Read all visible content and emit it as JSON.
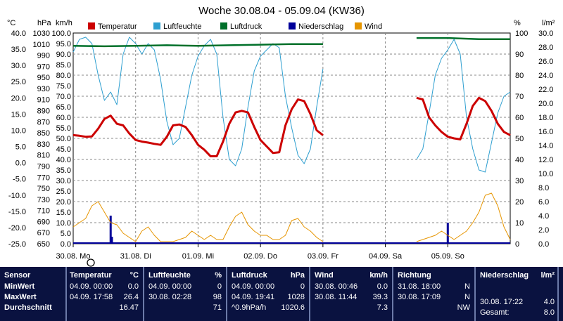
{
  "chart_data": {
    "type": "line",
    "title": "Woche 30.08.04 - 05.09.04 (KW36)",
    "x_ticks": [
      "30.08.  Mo",
      "31.08.  Di",
      "01.09.  Mi",
      "02.09.  Do",
      "03.09.  Fr",
      "04.09.  Sa",
      "05.09.  So"
    ],
    "axes": {
      "temp": {
        "unit": "°C",
        "ylim": [
          -25,
          40
        ],
        "ticks": [
          "40.0",
          "35.0",
          "30.0",
          "25.0",
          "20.0",
          "15.0",
          "10.0",
          "5.0",
          "0.0",
          "-5.0",
          "-10.0",
          "-15.0",
          "-20.0",
          "-25.0"
        ]
      },
      "pressure": {
        "unit": "hPa",
        "ylim": [
          650,
          1030
        ],
        "ticks": [
          "1030",
          "1010",
          "990",
          "970",
          "950",
          "930",
          "910",
          "890",
          "870",
          "850",
          "830",
          "810",
          "790",
          "770",
          "750",
          "730",
          "710",
          "690",
          "670",
          "650"
        ]
      },
      "wind": {
        "unit": "km/h",
        "ylim": [
          0,
          100
        ],
        "ticks": [
          "100.0",
          "95.0",
          "90.0",
          "85.0",
          "80.0",
          "75.0",
          "70.0",
          "65.0",
          "60.0",
          "55.0",
          "50.0",
          "45.0",
          "40.0",
          "35.0",
          "30.0",
          "25.0",
          "20.0",
          "15.0",
          "10.0",
          "5.0",
          "0.0"
        ]
      },
      "humidity": {
        "unit": "%",
        "ylim": [
          0,
          100
        ],
        "ticks": [
          "100",
          "90",
          "80",
          "70",
          "60",
          "50",
          "40",
          "30",
          "20",
          "10",
          "0"
        ]
      },
      "rain": {
        "unit": "l/m²",
        "ylim": [
          0,
          30
        ],
        "ticks": [
          "30.0",
          "28.0",
          "26.0",
          "24.0",
          "22.0",
          "20.0",
          "18.0",
          "16.0",
          "14.0",
          "12.0",
          "10.0",
          "8.0",
          "6.0",
          "4.0",
          "2.0",
          "0.0"
        ]
      }
    },
    "legend": [
      {
        "name": "Temperatur",
        "color": "#cc0000"
      },
      {
        "name": "Luftfeuchte",
        "color": "#2e9fd0"
      },
      {
        "name": "Luftdruck",
        "color": "#00702a"
      },
      {
        "name": "Niederschlag",
        "color": "#000099"
      },
      {
        "name": "Wind",
        "color": "#e69500"
      }
    ],
    "series": [
      {
        "name": "Temperatur",
        "axis": "temp",
        "color": "#cc0000",
        "x": [
          0,
          0.1,
          0.2,
          0.3,
          0.4,
          0.5,
          0.6,
          0.7,
          0.8,
          0.9,
          1.0,
          1.1,
          1.2,
          1.3,
          1.4,
          1.5,
          1.6,
          1.7,
          1.8,
          1.9,
          2.0,
          2.1,
          2.2,
          2.3,
          2.4,
          2.5,
          2.6,
          2.7,
          2.8,
          2.9,
          3.0,
          3.1,
          3.2,
          3.3,
          3.4,
          3.5,
          3.6,
          3.7,
          3.8,
          3.9,
          4.0,
          null,
          5.5,
          5.6,
          5.7,
          5.8,
          5.9,
          6.0,
          6.1,
          6.2,
          6.3,
          6.4,
          6.5,
          6.6,
          6.7,
          6.8,
          6.9,
          7.0
        ],
        "values": [
          8.5,
          8.3,
          8.0,
          8.1,
          10.5,
          13.5,
          14.5,
          12.0,
          11.5,
          9.0,
          7.0,
          6.5,
          6.2,
          5.8,
          5.5,
          8.0,
          11.5,
          11.8,
          11.0,
          8.5,
          5.5,
          4.0,
          2.0,
          2.0,
          6.5,
          12.0,
          15.5,
          16.0,
          15.5,
          11.0,
          7.0,
          5.0,
          3.0,
          3.2,
          11.5,
          16.5,
          19.5,
          19.0,
          15.0,
          10.0,
          8.5,
          null,
          20.0,
          19.5,
          14.0,
          11.5,
          9.5,
          8.0,
          7.5,
          7.2,
          12.0,
          17.5,
          20.0,
          19.0,
          16.0,
          12.0,
          9.5,
          8.5
        ]
      },
      {
        "name": "Luftfeuchte",
        "axis": "humidity",
        "color": "#2e9fd0",
        "x": [
          0,
          0.1,
          0.2,
          0.3,
          0.4,
          0.5,
          0.6,
          0.7,
          0.8,
          0.9,
          1.0,
          1.1,
          1.2,
          1.3,
          1.4,
          1.5,
          1.6,
          1.7,
          1.8,
          1.9,
          2.0,
          2.1,
          2.2,
          2.3,
          2.4,
          2.5,
          2.6,
          2.7,
          2.8,
          2.9,
          3.0,
          3.1,
          3.2,
          3.3,
          3.4,
          3.5,
          3.6,
          3.7,
          3.8,
          3.9,
          4.0,
          null,
          5.5,
          5.6,
          5.7,
          5.8,
          5.9,
          6.0,
          6.1,
          6.2,
          6.3,
          6.4,
          6.5,
          6.6,
          6.7,
          6.8,
          6.9,
          7.0
        ],
        "values": [
          91,
          97,
          98,
          95,
          80,
          68,
          72,
          66,
          90,
          98,
          95,
          90,
          95,
          92,
          78,
          58,
          47,
          50,
          65,
          80,
          89,
          94,
          97,
          90,
          60,
          40,
          37,
          45,
          65,
          82,
          89,
          92,
          95,
          93,
          70,
          55,
          42,
          38,
          45,
          65,
          83,
          null,
          40,
          45,
          62,
          80,
          88,
          92,
          97,
          90,
          60,
          45,
          35,
          34,
          48,
          62,
          70,
          72
        ]
      },
      {
        "name": "Luftdruck",
        "axis": "pressure",
        "color": "#00702a",
        "x": [
          0,
          0.5,
          1.0,
          1.5,
          2.0,
          2.5,
          3.0,
          3.5,
          4.0,
          null,
          5.5,
          6.0,
          6.5,
          7.0
        ],
        "values": [
          1007,
          1006,
          1007,
          1008,
          1007,
          1008,
          1009,
          1010,
          1010,
          null,
          1021,
          1021,
          1019,
          1019
        ]
      },
      {
        "name": "Wind",
        "axis": "wind",
        "color": "#e69500",
        "x": [
          0,
          0.1,
          0.2,
          0.3,
          0.4,
          0.5,
          0.6,
          0.7,
          0.8,
          0.9,
          1.0,
          1.1,
          1.2,
          1.3,
          1.4,
          1.5,
          1.6,
          1.7,
          1.8,
          1.9,
          2.0,
          2.1,
          2.2,
          2.3,
          2.4,
          2.5,
          2.6,
          2.7,
          2.8,
          2.9,
          3.0,
          3.1,
          3.2,
          3.3,
          3.4,
          3.5,
          3.6,
          3.7,
          3.8,
          3.9,
          4.0,
          null,
          5.5,
          5.6,
          5.7,
          5.8,
          5.9,
          6.0,
          6.1,
          6.2,
          6.3,
          6.4,
          6.5,
          6.6,
          6.7,
          6.8,
          6.9,
          7.0
        ],
        "values": [
          8,
          10,
          12,
          18,
          20,
          15,
          10,
          9,
          5,
          3,
          1,
          6,
          8,
          4,
          1,
          1,
          1,
          2,
          3,
          6,
          4,
          2,
          4,
          2,
          2,
          8,
          13,
          15,
          9,
          6,
          4,
          4,
          2,
          2,
          4,
          11,
          12,
          8,
          6,
          3,
          1,
          null,
          1,
          2,
          3,
          4,
          6,
          4,
          2,
          4,
          6,
          10,
          15,
          23,
          24,
          18,
          8,
          2
        ]
      }
    ],
    "rain_bars": [
      {
        "x": 0.6,
        "value": 4.0
      },
      {
        "x": 0.62,
        "value": 1.0
      },
      {
        "x": 6.0,
        "value": 3.0
      }
    ]
  },
  "stats": {
    "sensor": {
      "header": "Sensor",
      "rows": [
        "MinWert",
        "MaxWert",
        "Durchschnitt"
      ]
    },
    "temperatur": {
      "header": "Temperatur",
      "unit": "°C",
      "min_time": "04.09.  00:00",
      "min_val": "0.0",
      "max_time": "04.09.  17:58",
      "max_val": "26.4",
      "avg_val": "16.47"
    },
    "luftfeuchte": {
      "header": "Luftfeuchte",
      "unit": "%",
      "min_time": "04.09.  00:00",
      "min_val": "0",
      "max_time": "30.08.  02:28",
      "max_val": "98",
      "avg_val": "71"
    },
    "luftdruck": {
      "header": "Luftdruck",
      "unit": "hPa",
      "min_time": "04.09.  00:00",
      "min_val": "0",
      "max_time": "04.09.  19:41",
      "max_val": "1028",
      "avg_label": "^0.9hPa/h",
      "avg_val": "1020.6"
    },
    "wind": {
      "header": "Wind",
      "unit": "km/h",
      "min_time": "30.08.  00:46",
      "min_val": "0.0",
      "max_time": "30.08.  11:44",
      "max_val": "39.3",
      "avg_val": "7.3"
    },
    "richtung": {
      "header": "Richtung",
      "min_time": "31.08.  18:00",
      "min_val": "N",
      "max_time": "30.08.  17:09",
      "max_val": "N",
      "avg_val": "NW"
    },
    "niederschlag": {
      "header": "Niederschlag",
      "unit": "l/m²",
      "max_time": "30.08.  17:22",
      "max_val": "4.0",
      "total_label": "Gesamt:",
      "total_val": "8.0"
    }
  }
}
